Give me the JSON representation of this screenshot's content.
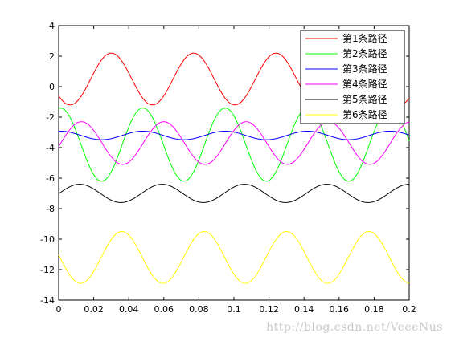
{
  "chart_data": {
    "type": "line",
    "title": "",
    "xlabel": "",
    "ylabel": "",
    "xlim": [
      0,
      0.2
    ],
    "ylim": [
      -14,
      4
    ],
    "x_ticks": [
      "0",
      "0.02",
      "0.04",
      "0.06",
      "0.08",
      "0.1",
      "0.12",
      "0.14",
      "0.16",
      "0.18",
      "0.2"
    ],
    "y_ticks": [
      "4",
      "2",
      "0",
      "-2",
      "-4",
      "-6",
      "-8",
      "-10",
      "-12",
      "-14"
    ],
    "grid": false,
    "legend_position": "top-right",
    "series": [
      {
        "name": "第1条路径",
        "color": "#ff0000",
        "period": 0.047,
        "mean": 0.5,
        "amplitude": 1.7,
        "phase_peak_x": 0.03,
        "min": -1.2,
        "max": 2.2
      },
      {
        "name": "第2条路径",
        "color": "#00ff00",
        "period": 0.047,
        "mean": -3.8,
        "amplitude": 2.4,
        "phase_peak_x": 0.048,
        "min": -6.2,
        "max": -1.4
      },
      {
        "name": "第3条路径",
        "color": "#0000ff",
        "period": 0.047,
        "mean": -3.2,
        "amplitude": 0.28,
        "phase_peak_x": 0.001,
        "min": -3.5,
        "max": -2.9
      },
      {
        "name": "第4条路径",
        "color": "#ff00ff",
        "period": 0.047,
        "mean": -3.7,
        "amplitude": 1.4,
        "phase_peak_x": 0.06,
        "min": -5.1,
        "max": -2.3
      },
      {
        "name": "第5条路径",
        "color": "#000000",
        "period": 0.047,
        "mean": -7.0,
        "amplitude": 0.6,
        "phase_peak_x": 0.012,
        "min": -7.6,
        "max": -6.4
      },
      {
        "name": "第6条路径",
        "color": "#ffff00",
        "period": 0.047,
        "mean": -11.2,
        "amplitude": 1.7,
        "phase_peak_x": 0.036,
        "min": -12.9,
        "max": -9.5
      }
    ]
  },
  "watermark": "http://blog.csdn.net/VeeeNus"
}
